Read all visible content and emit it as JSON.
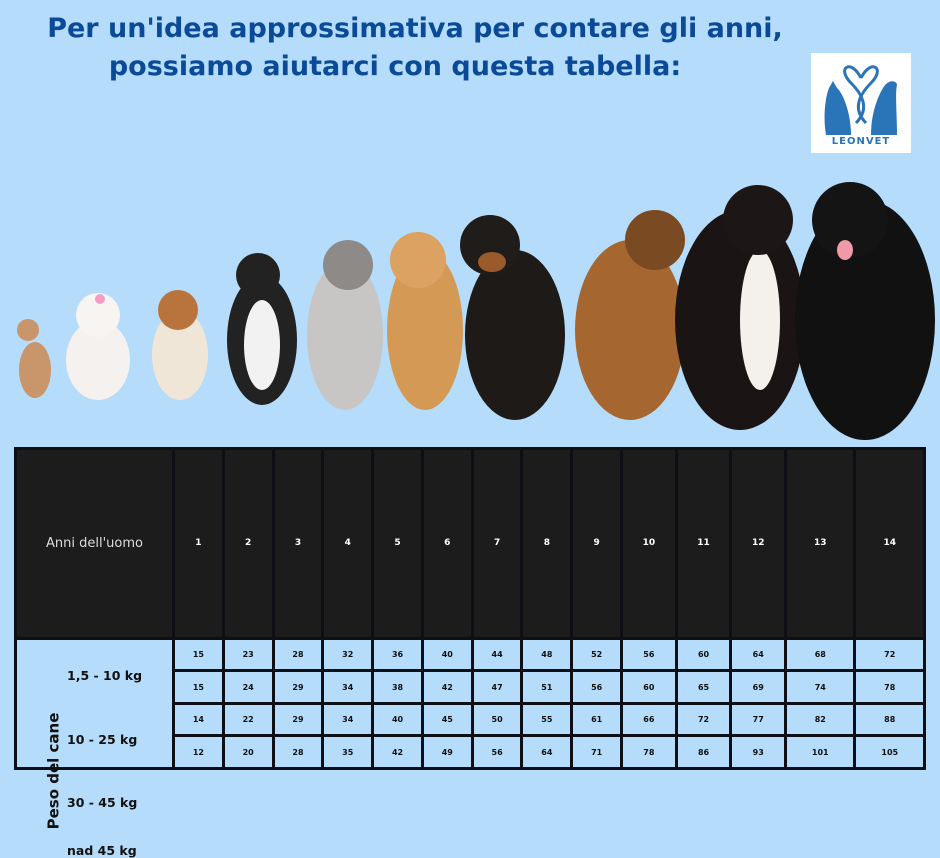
{
  "title": {
    "line1": "Per un'idea approssimativa per contare gli anni,",
    "line2": "possiamo aiutarci con questa tabella:"
  },
  "logo": {
    "text": "LEONVET",
    "color": "#2a74b8"
  },
  "colors": {
    "background": "#b5dcfa",
    "title": "#0a4a97",
    "header_bg": "#1c1c1c"
  },
  "table": {
    "header_label": "Anni dell'uomo",
    "row_axis_label": "Peso del cane",
    "human_years": [
      "1",
      "2",
      "3",
      "4",
      "5",
      "6",
      "7",
      "8",
      "9",
      "10",
      "11",
      "12",
      "13",
      "14"
    ],
    "rows": [
      {
        "weight": "1,5 - 10 kg",
        "values": [
          "15",
          "23",
          "28",
          "32",
          "36",
          "40",
          "44",
          "48",
          "52",
          "56",
          "60",
          "64",
          "68",
          "72"
        ]
      },
      {
        "weight": "10 - 25 kg",
        "values": [
          "15",
          "24",
          "29",
          "34",
          "38",
          "42",
          "47",
          "51",
          "56",
          "60",
          "65",
          "69",
          "74",
          "78"
        ]
      },
      {
        "weight": "30 - 45 kg",
        "values": [
          "14",
          "22",
          "29",
          "34",
          "40",
          "45",
          "50",
          "55",
          "61",
          "66",
          "72",
          "77",
          "82",
          "88"
        ]
      },
      {
        "weight": "nad 45 kg",
        "values": [
          "12",
          "20",
          "28",
          "35",
          "42",
          "49",
          "56",
          "64",
          "71",
          "78",
          "86",
          "93",
          "101",
          "105"
        ]
      }
    ]
  }
}
